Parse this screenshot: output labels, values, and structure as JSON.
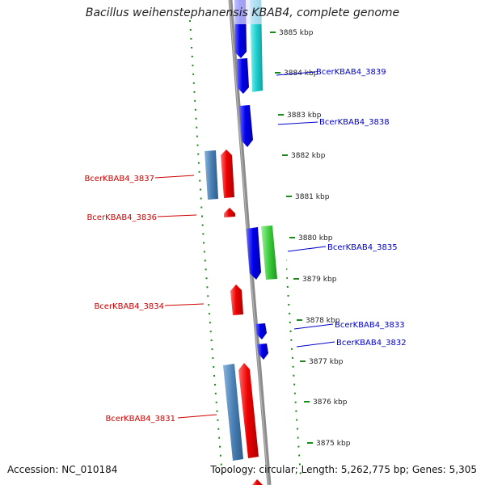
{
  "header": {
    "title": "Bacillus weihenstephanensis KBAB4, complete genome"
  },
  "footer": {
    "accession": "Accession: NC_010184",
    "summary": "Topology: circular; Length: 5,262,775 bp; Genes: 5,305"
  },
  "ticks": [
    {
      "label": "3885 kbp",
      "kbp": 3885
    },
    {
      "label": "3884 kbp",
      "kbp": 3884
    },
    {
      "label": "3883 kbp",
      "kbp": 3883
    },
    {
      "label": "3882 kbp",
      "kbp": 3882
    },
    {
      "label": "3881 kbp",
      "kbp": 3881
    },
    {
      "label": "3880 kbp",
      "kbp": 3880
    },
    {
      "label": "3879 kbp",
      "kbp": 3879
    },
    {
      "label": "3878 kbp",
      "kbp": 3878
    },
    {
      "label": "3877 kbp",
      "kbp": 3877
    },
    {
      "label": "3876 kbp",
      "kbp": 3876
    },
    {
      "label": "3875 kbp",
      "kbp": 3875
    }
  ],
  "gene_labels": [
    {
      "text": "BcerKBAB4_3839",
      "strand": "forward"
    },
    {
      "text": "BcerKBAB4_3838",
      "strand": "forward"
    },
    {
      "text": "BcerKBAB4_3837",
      "strand": "reverse"
    },
    {
      "text": "BcerKBAB4_3836",
      "strand": "reverse"
    },
    {
      "text": "BcerKBAB4_3835",
      "strand": "forward"
    },
    {
      "text": "BcerKBAB4_3834",
      "strand": "reverse"
    },
    {
      "text": "BcerKBAB4_3833",
      "strand": "forward"
    },
    {
      "text": "BcerKBAB4_3832",
      "strand": "forward"
    },
    {
      "text": "BcerKBAB4_3831",
      "strand": "reverse"
    }
  ],
  "colors": {
    "forward_gene": "#0000ee",
    "reverse_gene": "#ee0000",
    "forward_label": "#0000cc",
    "reverse_label": "#cc0000",
    "cds_cyan": "#20d0d0",
    "cds_green": "#3ccc3c",
    "cds_steelblue": "#4a80b4",
    "backbone": "#8c8c8c",
    "tick_green": "#1a8a1a",
    "tick_label": "#222222"
  }
}
